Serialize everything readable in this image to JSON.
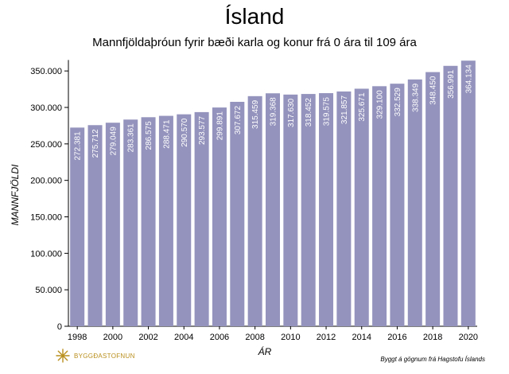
{
  "colors": {
    "bar": "#9493bd",
    "bar_label": "#ffffff",
    "axis": "#000000",
    "logo": "#b98f1d"
  },
  "logo": {
    "icon": "sunburst-logo-icon",
    "text": "BYGGÐASTOFNUN"
  },
  "credit": "Byggt á gögnum frá Hagstofu Íslands",
  "chart_data": {
    "type": "bar",
    "title": "Ísland",
    "subtitle": "Mannfjöldaþróun fyrir bæði karla og konur frá 0 ára til 109 ára",
    "xlabel": "ÁR",
    "ylabel": "MANNFJÖLDI",
    "ylim": [
      0,
      365000
    ],
    "grid": false,
    "legend": "none",
    "yticks": [
      0,
      50000,
      100000,
      150000,
      200000,
      250000,
      300000,
      350000
    ],
    "ytick_labels": [
      "0",
      "50.000",
      "100.000",
      "150.000",
      "200.000",
      "250.000",
      "300.000",
      "350.000"
    ],
    "xtick_labels": [
      "1998",
      "2000",
      "2002",
      "2004",
      "2006",
      "2008",
      "2010",
      "2012",
      "2014",
      "2016",
      "2018",
      "2020"
    ],
    "categories": [
      1998,
      1999,
      2000,
      2001,
      2002,
      2003,
      2004,
      2005,
      2006,
      2007,
      2008,
      2009,
      2010,
      2011,
      2012,
      2013,
      2014,
      2015,
      2016,
      2017,
      2018,
      2019,
      2020
    ],
    "values": [
      272381,
      275712,
      279049,
      283361,
      286575,
      288471,
      290570,
      293577,
      299891,
      307672,
      315459,
      319368,
      317630,
      318452,
      319575,
      321857,
      325671,
      329100,
      332529,
      338349,
      348450,
      356991,
      364134
    ],
    "value_labels": [
      "272.381",
      "275.712",
      "279.049",
      "283.361",
      "286.575",
      "288.471",
      "290.570",
      "293.577",
      "299.891",
      "307.672",
      "315.459",
      "319.368",
      "317.630",
      "318.452",
      "319.575",
      "321.857",
      "325.671",
      "329.100",
      "332.529",
      "338.349",
      "348.450",
      "356.991",
      "364.134"
    ]
  }
}
